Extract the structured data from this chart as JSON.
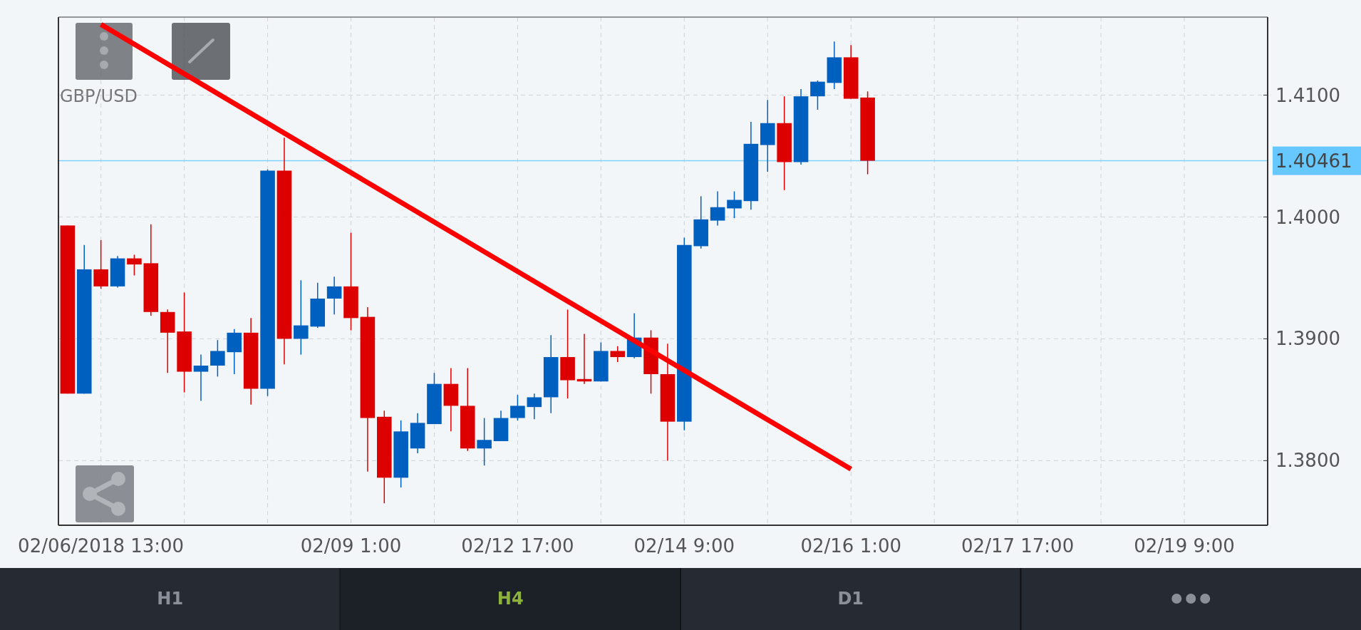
{
  "chart_data": {
    "type": "candlestick",
    "title": "GBP/USD",
    "categories": [
      null,
      null,
      "02/06/2018 13:00",
      null,
      null,
      null,
      null,
      null,
      null,
      null,
      null,
      null,
      null,
      null,
      null,
      null,
      null,
      "02/09 1:00",
      null,
      null,
      null,
      null,
      null,
      null,
      null,
      null,
      null,
      "02/12 17:00",
      null,
      null,
      null,
      null,
      null,
      null,
      null,
      null,
      null,
      "02/14 9:00",
      null,
      null,
      null,
      null,
      null,
      null,
      null,
      null,
      null,
      "02/16 1:00",
      null,
      null,
      null,
      null,
      null,
      null,
      null,
      null,
      null,
      "02/17 17:00",
      null,
      null,
      null,
      null,
      null,
      null,
      null,
      null,
      null,
      "02/19 9:00",
      null,
      null,
      null,
      null,
      null
    ],
    "ohlc": [
      [
        1.3993,
        1.3993,
        1.3855,
        1.3855
      ],
      [
        1.3855,
        1.3977,
        1.3855,
        1.3957
      ],
      [
        1.3957,
        1.3981,
        1.3941,
        1.3943
      ],
      [
        1.3943,
        1.3968,
        1.3942,
        1.3966
      ],
      [
        1.3966,
        1.3969,
        1.3952,
        1.3961
      ],
      [
        1.3962,
        1.3994,
        1.3919,
        1.3922
      ],
      [
        1.3922,
        1.3924,
        1.3872,
        1.3905
      ],
      [
        1.3906,
        1.3938,
        1.3856,
        1.3873
      ],
      [
        1.3873,
        1.3887,
        1.3849,
        1.3878
      ],
      [
        1.3878,
        1.3899,
        1.3869,
        1.389
      ],
      [
        1.3889,
        1.3908,
        1.3871,
        1.3905
      ],
      [
        1.3905,
        1.3917,
        1.3846,
        1.3859
      ],
      [
        1.3859,
        1.4039,
        1.3853,
        1.4038
      ],
      [
        1.4038,
        1.4065,
        1.3879,
        1.39
      ],
      [
        1.39,
        1.3948,
        1.3887,
        1.3911
      ],
      [
        1.391,
        1.3946,
        1.3909,
        1.3933
      ],
      [
        1.3933,
        1.3951,
        1.392,
        1.3943
      ],
      [
        1.3943,
        1.3987,
        1.3907,
        1.3917
      ],
      [
        1.3918,
        1.3926,
        1.3791,
        1.3835
      ],
      [
        1.3836,
        1.3841,
        1.3765,
        1.3786
      ],
      [
        1.3786,
        1.3833,
        1.3778,
        1.3824
      ],
      [
        1.381,
        1.3839,
        1.3806,
        1.3831
      ],
      [
        1.383,
        1.3872,
        1.383,
        1.3863
      ],
      [
        1.3863,
        1.3876,
        1.3824,
        1.3845
      ],
      [
        1.3845,
        1.3876,
        1.3808,
        1.381
      ],
      [
        1.381,
        1.3835,
        1.3796,
        1.3817
      ],
      [
        1.3816,
        1.3841,
        1.3816,
        1.3835
      ],
      [
        1.3835,
        1.3854,
        1.3833,
        1.3845
      ],
      [
        1.3844,
        1.3855,
        1.3834,
        1.3852
      ],
      [
        1.3852,
        1.3903,
        1.3839,
        1.3885
      ],
      [
        1.3885,
        1.3924,
        1.3851,
        1.3866
      ],
      [
        1.3867,
        1.3904,
        1.3863,
        1.3865
      ],
      [
        1.3865,
        1.3897,
        1.3865,
        1.389
      ],
      [
        1.389,
        1.3894,
        1.3881,
        1.3885
      ],
      [
        1.3885,
        1.3921,
        1.3884,
        1.3901
      ],
      [
        1.3901,
        1.3907,
        1.3855,
        1.3871
      ],
      [
        1.3871,
        1.3896,
        1.38,
        1.3832
      ],
      [
        1.3832,
        1.3983,
        1.3825,
        1.3977
      ],
      [
        1.3976,
        1.4017,
        1.3974,
        1.3998
      ],
      [
        1.3997,
        1.4021,
        1.3993,
        1.4008
      ],
      [
        1.4007,
        1.4021,
        1.3999,
        1.4014
      ],
      [
        1.4013,
        1.4078,
        1.4006,
        1.406
      ],
      [
        1.4059,
        1.4096,
        1.4037,
        1.4077
      ],
      [
        1.4077,
        1.4099,
        1.4022,
        1.4045
      ],
      [
        1.4045,
        1.4105,
        1.4043,
        1.4099
      ],
      [
        1.4099,
        1.4112,
        1.4088,
        1.4111
      ],
      [
        1.411,
        1.4144,
        1.4105,
        1.4131
      ],
      [
        1.4131,
        1.4141,
        1.4097,
        1.4097
      ],
      [
        1.4098,
        1.4103,
        1.4035,
        1.40461
      ],
      null,
      null,
      null,
      null,
      null,
      null,
      null,
      null,
      null,
      null,
      null,
      null,
      null,
      null,
      null,
      null,
      null,
      null,
      null,
      null,
      null,
      null,
      null,
      null
    ],
    "series": [
      {
        "type": "line",
        "color": "#ff0000",
        "values": [
          null,
          null,
          1.4158,
          null,
          null,
          null,
          null,
          null,
          null,
          null,
          null,
          null,
          null,
          null,
          null,
          null,
          null,
          null,
          null,
          null,
          null,
          null,
          null,
          null,
          null,
          null,
          null,
          null,
          null,
          null,
          null,
          null,
          null,
          null,
          null,
          null,
          null,
          null,
          null,
          null,
          null,
          null,
          null,
          null,
          null,
          null,
          null,
          1.3793,
          null,
          null,
          null,
          null,
          null,
          null,
          null,
          null,
          null,
          null,
          null,
          null,
          null,
          null,
          null,
          null,
          null,
          null,
          null,
          null,
          null,
          null,
          null,
          null,
          null
        ]
      }
    ],
    "ylim": [
      1.3747,
      1.4164
    ],
    "yticks": [
      {
        "value": 1.38,
        "label": "1.3800"
      },
      {
        "value": 1.39,
        "label": "1.3900"
      },
      {
        "value": 1.4,
        "label": "1.4000"
      },
      {
        "value": 1.41,
        "label": "1.4100"
      }
    ],
    "grid": true,
    "ref_lines": [
      {
        "axis": "y",
        "value": 1.40461,
        "label": "1.40461",
        "color": "#7fd2ff"
      }
    ],
    "annotations": [
      "H1",
      "H4",
      "D1"
    ]
  }
}
